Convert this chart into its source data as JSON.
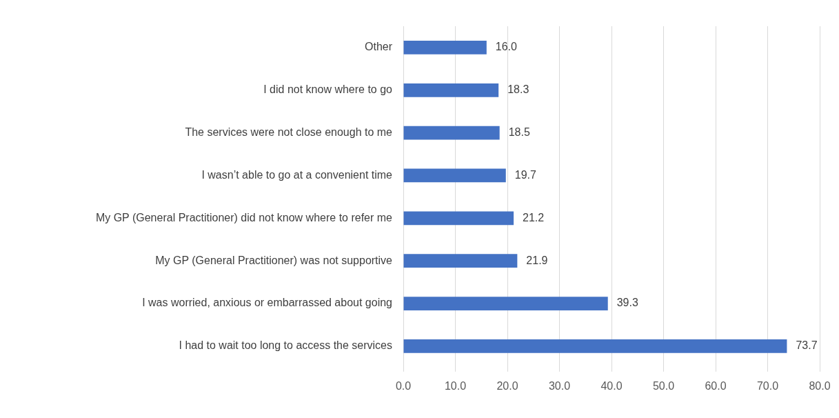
{
  "chart_data": {
    "type": "bar",
    "orientation": "horizontal",
    "categories": [
      "Other",
      "I did not know where to go",
      "The services were not close enough to me",
      "I wasn’t able to go at a convenient time",
      "My GP (General Practitioner) did not know where to refer me",
      "My GP (General Practitioner) was not supportive",
      "I was worried, anxious or embarrassed about going",
      "I had to wait too long to access the services"
    ],
    "values": [
      16.0,
      18.3,
      18.5,
      19.7,
      21.2,
      21.9,
      39.3,
      73.7
    ],
    "value_labels": [
      "16.0",
      "18.3",
      "18.5",
      "19.7",
      "21.2",
      "21.9",
      "39.3",
      "73.7"
    ],
    "color": "#4472c4",
    "xlim": [
      0,
      80
    ],
    "xticks": [
      {
        "value": 0,
        "label": "0.0"
      },
      {
        "value": 10,
        "label": "10.0"
      },
      {
        "value": 20,
        "label": "20.0"
      },
      {
        "value": 30,
        "label": "30.0"
      },
      {
        "value": 40,
        "label": "40.0"
      },
      {
        "value": 50,
        "label": "50.0"
      },
      {
        "value": 60,
        "label": "60.0"
      },
      {
        "value": 70,
        "label": "70.0"
      },
      {
        "value": 80,
        "label": "80.0"
      }
    ],
    "grid": "x"
  }
}
